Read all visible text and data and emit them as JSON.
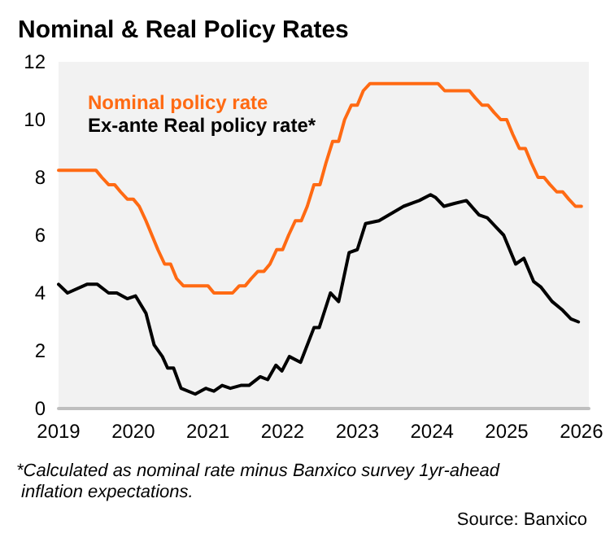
{
  "chart_data": {
    "type": "line",
    "title": "Nominal & Real Policy Rates",
    "xlim": [
      2019,
      2026.1
    ],
    "xticks": [
      2019,
      2020,
      2021,
      2022,
      2023,
      2024,
      2025,
      2026
    ],
    "ylim": [
      0,
      12
    ],
    "yticks": [
      0,
      2,
      4,
      6,
      8,
      10,
      12
    ],
    "grid": false,
    "legend": "top left",
    "marker": "none",
    "line_style": "solid",
    "series": [
      {
        "name": "Nominal policy rate",
        "color": "#ff6a13",
        "x": [
          2019,
          2019.08,
          2019.17,
          2019.25,
          2019.33,
          2019.42,
          2019.5,
          2019.58,
          2019.67,
          2019.75,
          2019.83,
          2019.92,
          2020,
          2020.08,
          2020.17,
          2020.25,
          2020.33,
          2020.42,
          2020.5,
          2020.58,
          2020.67,
          2020.75,
          2020.83,
          2020.92,
          2021,
          2021.08,
          2021.17,
          2021.25,
          2021.33,
          2021.42,
          2021.5,
          2021.58,
          2021.67,
          2021.75,
          2021.83,
          2021.92,
          2022,
          2022.08,
          2022.17,
          2022.25,
          2022.33,
          2022.42,
          2022.5,
          2022.58,
          2022.67,
          2022.75,
          2022.83,
          2022.92,
          2023,
          2023.08,
          2023.17,
          2023.25,
          2023.33,
          2023.42,
          2023.5,
          2023.58,
          2023.67,
          2023.75,
          2023.83,
          2023.92,
          2024,
          2024.08,
          2024.17,
          2024.25,
          2024.33,
          2024.42,
          2024.5,
          2024.58,
          2024.67,
          2024.75,
          2024.83,
          2024.92,
          2025,
          2025.08,
          2025.17,
          2025.25,
          2025.33,
          2025.42,
          2025.5,
          2025.58,
          2025.67,
          2025.75,
          2025.83,
          2025.92,
          2026
        ],
        "values": [
          8.25,
          8.25,
          8.25,
          8.25,
          8.25,
          8.25,
          8.25,
          8,
          7.75,
          7.75,
          7.5,
          7.25,
          7.25,
          7,
          6.5,
          6,
          5.5,
          5,
          5,
          4.5,
          4.25,
          4.25,
          4.25,
          4.25,
          4.25,
          4,
          4,
          4,
          4,
          4.25,
          4.25,
          4.5,
          4.75,
          4.75,
          5,
          5.5,
          5.5,
          6,
          6.5,
          6.5,
          7,
          7.75,
          7.75,
          8.5,
          9.25,
          9.25,
          10,
          10.5,
          10.5,
          11,
          11.25,
          11.25,
          11.25,
          11.25,
          11.25,
          11.25,
          11.25,
          11.25,
          11.25,
          11.25,
          11.25,
          11.25,
          11,
          11,
          11,
          11,
          11,
          10.75,
          10.5,
          10.5,
          10.25,
          10,
          10,
          9.5,
          9,
          9,
          8.5,
          8,
          8,
          7.75,
          7.5,
          7.5,
          7.25,
          7,
          7
        ]
      },
      {
        "name": "Ex-ante Real policy rate*",
        "color": "#000000",
        "x": [
          2019,
          2019.12,
          2019.38,
          2019.52,
          2019.67,
          2019.78,
          2019.92,
          2020.03,
          2020.17,
          2020.28,
          2020.39,
          2020.46,
          2020.54,
          2020.64,
          2020.83,
          2020.97,
          2021.08,
          2021.19,
          2021.3,
          2021.44,
          2021.55,
          2021.7,
          2021.8,
          2021.91,
          2021.99,
          2022.09,
          2022.24,
          2022.42,
          2022.49,
          2022.64,
          2022.75,
          2022.89,
          2023,
          2023.11,
          2023.29,
          2023.62,
          2023.83,
          2023.98,
          2024.05,
          2024.16,
          2024.3,
          2024.46,
          2024.63,
          2024.74,
          2024.85,
          2024.96,
          2025.12,
          2025.23,
          2025.36,
          2025.46,
          2025.61,
          2025.75,
          2025.86,
          2025.96
        ],
        "values": [
          4.3,
          4.0,
          4.3,
          4.3,
          4.0,
          4.0,
          3.8,
          3.9,
          3.3,
          2.2,
          1.8,
          1.4,
          1.4,
          0.7,
          0.5,
          0.7,
          0.6,
          0.8,
          0.7,
          0.8,
          0.8,
          1.1,
          1.0,
          1.5,
          1.3,
          1.8,
          1.6,
          2.8,
          2.8,
          4.0,
          3.7,
          5.4,
          5.5,
          6.4,
          6.5,
          7.0,
          7.2,
          7.4,
          7.3,
          7.0,
          7.1,
          7.2,
          6.7,
          6.6,
          6.3,
          6.0,
          5.0,
          5.2,
          4.4,
          4.2,
          3.7,
          3.4,
          3.1,
          3.0
        ]
      }
    ],
    "annotations": [
      "*Calculated as nominal rate minus Banxico survey 1yr-ahead inflation expectations.",
      "Source: Banxico"
    ]
  }
}
